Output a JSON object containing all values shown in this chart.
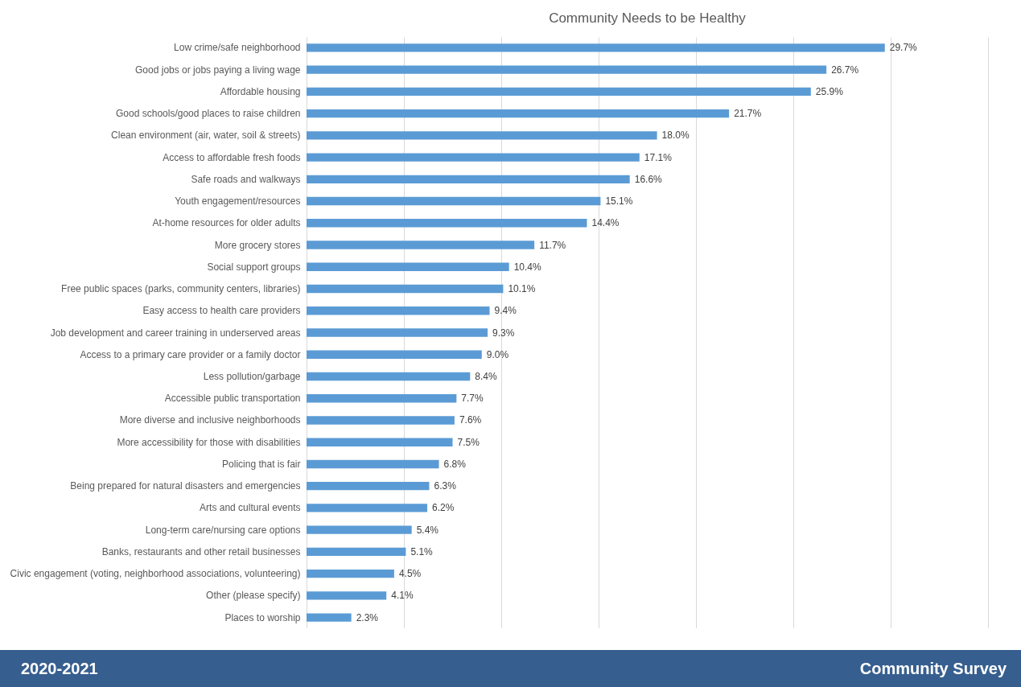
{
  "chart_data": {
    "type": "bar",
    "orientation": "horizontal",
    "title": "Community Needs to be Healthy",
    "categories": [
      "Low crime/safe neighborhood",
      "Good jobs or jobs paying a living wage",
      "Affordable housing",
      "Good schools/good places to raise children",
      "Clean environment (air, water, soil & streets)",
      "Access to affordable fresh foods",
      "Safe roads and walkways",
      "Youth engagement/resources",
      "At-home resources for older adults",
      "More grocery stores",
      "Social support groups",
      "Free public spaces (parks, community centers, libraries)",
      "Easy access to health care providers",
      "Job development and career training in underserved areas",
      "Access to a primary care provider or a family doctor",
      "Less pollution/garbage",
      "Accessible public transportation",
      "More diverse and inclusive neighborhoods",
      "More accessibility for those with disabilities",
      "Policing that is fair",
      "Being prepared for natural disasters and emergencies",
      "Arts and cultural events",
      "Long-term care/nursing care options",
      "Banks, restaurants and other retail businesses",
      "Civic engagement (voting, neighborhood associations, volunteering)",
      "Other (please specify)",
      "Places to worship"
    ],
    "values": [
      29.7,
      26.7,
      25.9,
      21.7,
      18.0,
      17.1,
      16.6,
      15.1,
      14.4,
      11.7,
      10.4,
      10.1,
      9.4,
      9.3,
      9.0,
      8.4,
      7.7,
      7.6,
      7.5,
      6.8,
      6.3,
      6.2,
      5.4,
      5.1,
      4.5,
      4.1,
      2.3
    ],
    "value_labels": [
      "29.7%",
      "26.7%",
      "25.9%",
      "21.7%",
      "18.0%",
      "17.1%",
      "16.6%",
      "15.1%",
      "14.4%",
      "11.7%",
      "10.4%",
      "10.1%",
      "9.4%",
      "9.3%",
      "9.0%",
      "8.4%",
      "7.7%",
      "7.6%",
      "7.5%",
      "6.8%",
      "6.3%",
      "6.2%",
      "5.4%",
      "5.1%",
      "4.5%",
      "4.1%",
      "2.3%"
    ],
    "color": "#5b9bd5",
    "xlim": [
      0,
      35
    ],
    "xticks": [
      {
        "value": 0,
        "label": null
      },
      {
        "value": 5,
        "label": null
      },
      {
        "value": 10,
        "label": null
      },
      {
        "value": 15,
        "label": null
      },
      {
        "value": 20,
        "label": null
      },
      {
        "value": 25,
        "label": null
      },
      {
        "value": 30,
        "label": null
      },
      {
        "value": 35,
        "label": null
      }
    ],
    "grid": "x",
    "tick_labels": "y",
    "annotations": [
      "2020-2021",
      "Community Survey"
    ]
  }
}
